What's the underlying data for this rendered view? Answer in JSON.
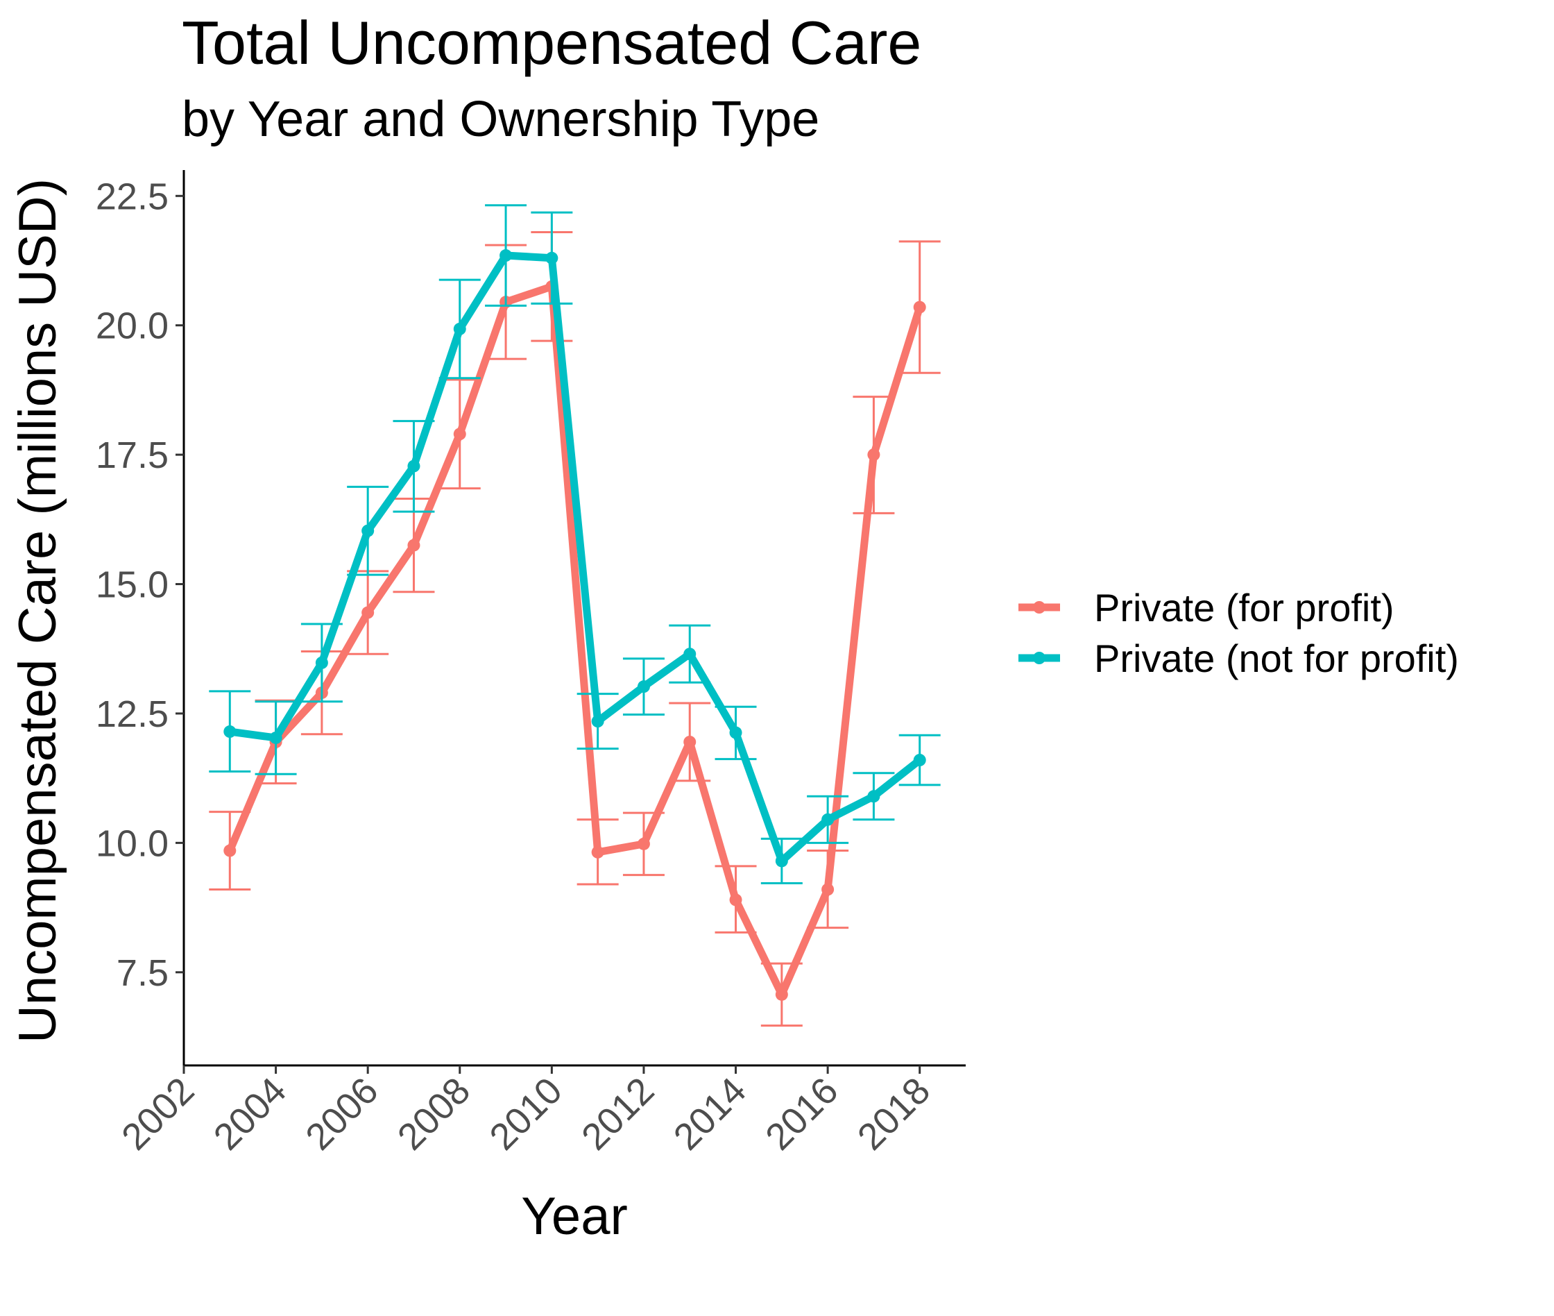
{
  "chart_data": {
    "type": "line",
    "title": "Total Uncompensated Care",
    "subtitle": "by Year and Ownership Type",
    "xlabel": "Year",
    "ylabel": "Uncompensated Care (millions USD)",
    "xlim": [
      2002,
      2019
    ],
    "ylim": [
      5.7,
      23.0
    ],
    "x_ticks": [
      "2002",
      "2004",
      "2006",
      "2008",
      "2010",
      "2012",
      "2014",
      "2016",
      "2018"
    ],
    "y_ticks": [
      "7.5",
      "10.0",
      "12.5",
      "15.0",
      "17.5",
      "20.0",
      "22.5"
    ],
    "grid": false,
    "legend_position": "right",
    "error_bars": true,
    "x": [
      2003,
      2004,
      2005,
      2006,
      2007,
      2008,
      2009,
      2010,
      2011,
      2012,
      2013,
      2014,
      2015,
      2016,
      2017,
      2018
    ],
    "series": [
      {
        "name": "Private (for profit)",
        "color": "#F8766D",
        "values": [
          9.85,
          11.95,
          12.9,
          14.45,
          15.75,
          17.9,
          20.45,
          20.75,
          9.82,
          9.98,
          11.95,
          8.9,
          7.07,
          9.1,
          17.5,
          20.35
        ],
        "lower": [
          9.1,
          11.15,
          12.1,
          13.65,
          14.85,
          16.85,
          19.35,
          19.7,
          9.2,
          9.38,
          11.2,
          8.27,
          6.47,
          8.36,
          16.37,
          19.08
        ],
        "upper": [
          10.6,
          12.75,
          13.7,
          15.25,
          16.65,
          18.95,
          21.55,
          21.8,
          10.45,
          10.58,
          12.7,
          9.55,
          7.67,
          9.85,
          18.62,
          21.62
        ]
      },
      {
        "name": "Private (not for profit)",
        "color": "#00BFC4",
        "values": [
          12.15,
          12.03,
          13.48,
          16.03,
          17.28,
          19.93,
          21.35,
          21.3,
          12.35,
          13.02,
          13.65,
          12.13,
          9.65,
          10.45,
          10.9,
          11.6
        ],
        "lower": [
          11.38,
          11.33,
          12.73,
          15.18,
          16.4,
          18.98,
          20.38,
          20.42,
          11.82,
          12.48,
          13.1,
          11.62,
          9.22,
          10.0,
          10.45,
          11.12
        ],
        "upper": [
          12.93,
          12.73,
          14.23,
          16.88,
          18.15,
          20.88,
          22.32,
          22.18,
          12.88,
          13.56,
          14.2,
          12.63,
          10.08,
          10.9,
          11.35,
          12.08
        ]
      }
    ]
  }
}
